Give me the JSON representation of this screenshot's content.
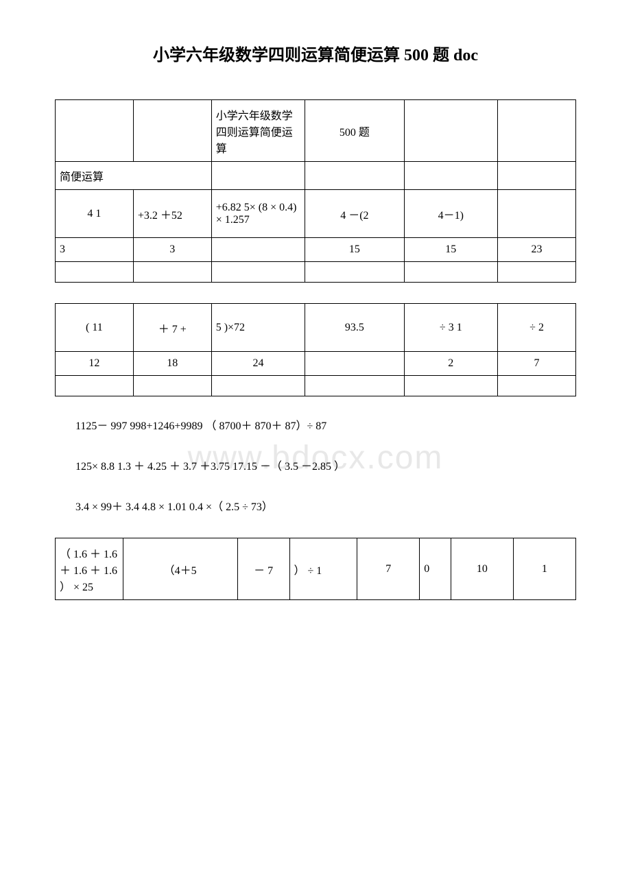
{
  "title": "小学六年级数学四则运算简便运算 500 题 doc",
  "watermark": "www.bdocx.com",
  "table1": {
    "r1": {
      "c3": "小学六年级数学四则运算简便运算",
      "c4": "500 题"
    },
    "r2": {
      "c1": "简便运算"
    },
    "r3": {
      "c1": "4 1",
      "c2": "+3.2 ＋52",
      "c3": "+6.82 5× (8 × 0.4) × 1.257",
      "c4": "4 －(2",
      "c5": "4－1)"
    },
    "r4": {
      "c1": "3",
      "c2": "3",
      "c4": "15",
      "c5": "15",
      "c6": "23"
    }
  },
  "table2": {
    "r1": {
      "c1": "( 11",
      "c2": "＋ 7 +",
      "c3": "5 )×72",
      "c4": "93.5",
      "c5": "÷ 3 1",
      "c6": "÷ 2"
    },
    "r2": {
      "c1": "12",
      "c2": "18",
      "c3": "24",
      "c5": "2",
      "c6": "7"
    }
  },
  "para1": "1125－ 997 998+1246+9989  （ 8700＋ 870＋ 87）÷ 87",
  "para2": "125× 8.8 1.3 ＋ 4.25 ＋ 3.7 ＋3.75 17.15 －（ 3.5 －2.85 ）",
  "para3": "3.4 × 99＋ 3.4 4.8 × 1.01 0.4 ×（ 2.5 ÷ 73）",
  "table3": {
    "r1": {
      "c1": "（ 1.6 ＋ 1.6 ＋ 1.6 ＋ 1.6 ） × 25",
      "c2": "（4＋5",
      "c3": "－ 7",
      "c4": "） ÷ 1",
      "c5": "7",
      "c6": "0",
      "c7": "10",
      "c8": "1"
    }
  },
  "colors": {
    "background": "#ffffff",
    "text": "#000000",
    "border": "#000000",
    "watermark": "#e8e8e8"
  }
}
